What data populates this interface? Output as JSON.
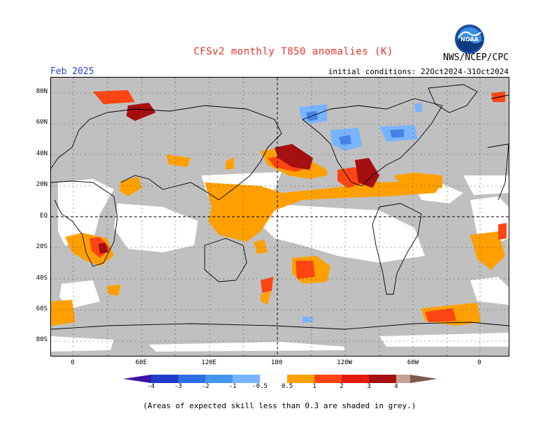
{
  "header": {
    "title": "CFSv2 monthly T850 anomalies (K)",
    "agency": "NWS/NCEP/CPC",
    "logo_text": "NOAA",
    "month": "Feb 2025",
    "initial_conditions": "initial conditions: 22Oct2024-31Oct2024"
  },
  "map": {
    "projection": "equirectangular",
    "lat_labels": [
      "80N",
      "60N",
      "40N",
      "20N",
      "EQ",
      "20S",
      "40S",
      "60S",
      "80S"
    ],
    "lon_labels": [
      "0",
      "60E",
      "120E",
      "180",
      "120W",
      "60W",
      "0"
    ],
    "grey_meaning": "skill < 0.3",
    "colors": {
      "grey": "#c0c0c0",
      "orange": "#ffa000",
      "red_orange": "#ff4513",
      "red": "#e31b0c",
      "dark_red": "#a50f0f",
      "light_blue": "#78b4ff",
      "blue": "#4682e6"
    }
  },
  "colorbar": {
    "labels": [
      "-4",
      "-3",
      "-2",
      "-1",
      "-0.5",
      "0.5",
      "1",
      "2",
      "3",
      "4"
    ],
    "colors": [
      "#3c14a5",
      "#1f3cc8",
      "#2d6ee6",
      "#4696f0",
      "#78b4ff",
      "#ffffff",
      "#ffa000",
      "#ff4513",
      "#e31b0c",
      "#a50f0f",
      "#c8a096",
      "#825a50"
    ]
  },
  "footer": {
    "note": "(Areas of expected skill less than 0.3 are shaded in grey.)"
  }
}
